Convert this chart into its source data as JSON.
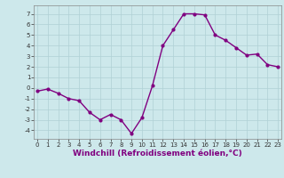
{
  "x": [
    0,
    1,
    2,
    3,
    4,
    5,
    6,
    7,
    8,
    9,
    10,
    11,
    12,
    13,
    14,
    15,
    16,
    17,
    18,
    19,
    20,
    21,
    22,
    23
  ],
  "y": [
    -0.3,
    -0.1,
    -0.5,
    -1.0,
    -1.2,
    -2.3,
    -3.0,
    -2.5,
    -3.0,
    -4.3,
    -2.8,
    0.2,
    4.0,
    5.5,
    7.0,
    7.0,
    6.9,
    5.0,
    4.5,
    3.8,
    3.1,
    3.2,
    2.2,
    2.0
  ],
  "line_color": "#800080",
  "marker": "o",
  "marker_size": 2.0,
  "xlabel": "Windchill (Refroidissement éolien,°C)",
  "ylim": [
    -4.8,
    7.8
  ],
  "xlim": [
    -0.3,
    23.3
  ],
  "yticks": [
    -4,
    -3,
    -2,
    -1,
    0,
    1,
    2,
    3,
    4,
    5,
    6,
    7
  ],
  "xticks": [
    0,
    1,
    2,
    3,
    4,
    5,
    6,
    7,
    8,
    9,
    10,
    11,
    12,
    13,
    14,
    15,
    16,
    17,
    18,
    19,
    20,
    21,
    22,
    23
  ],
  "background_color": "#cde8eb",
  "grid_color": "#b0d0d5",
  "tick_label_fontsize": 5.0,
  "xlabel_fontsize": 6.5,
  "xlabel_color": "#800080",
  "line_width": 1.0
}
